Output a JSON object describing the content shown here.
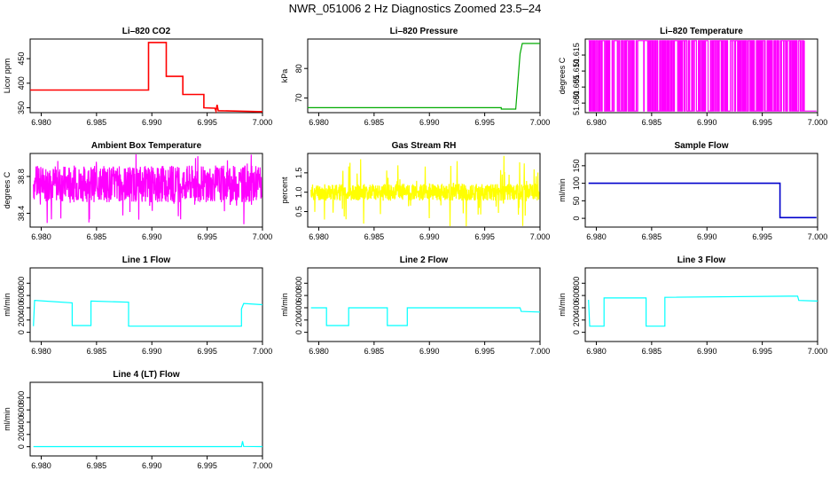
{
  "figure": {
    "title": "NWR_051006  2 Hz Diagnostics Zoomed 23.5–24"
  },
  "chart_data": [
    {
      "type": "line",
      "id": "co2",
      "title": "Li–820 CO2",
      "ylabel": "Licor ppm",
      "color": "#ff0000",
      "xlim": [
        6.979,
        7.0
      ],
      "ylim": [
        340,
        490
      ],
      "xticks": [
        6.98,
        6.985,
        6.99,
        6.995,
        7.0
      ],
      "xtick_labels": [
        "6.980",
        "6.985",
        "6.990",
        "6.995",
        "7.000"
      ],
      "yticks": [
        350,
        400,
        450
      ],
      "ytick_labels": [
        "350",
        "400",
        "450"
      ],
      "x": [
        6.979,
        6.9897,
        6.9897,
        6.9913,
        6.9913,
        6.9928,
        6.9928,
        6.9947,
        6.9947,
        6.9957,
        6.9958,
        6.9959,
        6.996,
        7.0
      ],
      "y": [
        386,
        386,
        483,
        483,
        414,
        414,
        377,
        377,
        350,
        349,
        343,
        356,
        344,
        342
      ]
    },
    {
      "type": "line",
      "id": "pressure",
      "title": "Li–820 Pressure",
      "ylabel": "kPa",
      "color": "#00aa00",
      "xlim": [
        6.979,
        7.0
      ],
      "ylim": [
        65,
        90
      ],
      "xticks": [
        6.98,
        6.985,
        6.99,
        6.995,
        7.0
      ],
      "xtick_labels": [
        "6.980",
        "6.985",
        "6.990",
        "6.995",
        "7.000"
      ],
      "yticks": [
        70,
        80
      ],
      "ytick_labels": [
        "70",
        "80"
      ],
      "x": [
        6.979,
        6.9965,
        6.9965,
        6.9978,
        6.9982,
        6.9984,
        7.0
      ],
      "y": [
        66.7,
        66.7,
        66.2,
        66.2,
        85,
        88.5,
        88.5
      ]
    },
    {
      "type": "line",
      "id": "licor-temp",
      "title": "Li–820 Temperature",
      "ylabel": "degrees C",
      "color": "#ff00ff",
      "xlim": [
        6.979,
        7.0
      ],
      "ylim": [
        51.597,
        51.62
      ],
      "xticks": [
        6.98,
        6.985,
        6.99,
        6.995,
        7.0
      ],
      "xtick_labels": [
        "6.980",
        "6.985",
        "6.990",
        "6.995",
        "7.000"
      ],
      "yticks": [
        51.6,
        51.605,
        51.61,
        51.615
      ],
      "ytick_labels": [
        "51.600",
        "51.605",
        "51.610",
        "51.615"
      ],
      "series_style": "binary",
      "low": 51.5975,
      "high": 51.6195,
      "seed": 3,
      "density": 0.55,
      "steps": 90,
      "x_end": 6.9988
    },
    {
      "type": "line",
      "id": "box-temp",
      "title": "Ambient Box Temperature",
      "ylabel": "degrees C",
      "color": "#ff00ff",
      "xlim": [
        6.979,
        7.0
      ],
      "ylim": [
        38.25,
        39.05
      ],
      "xticks": [
        6.98,
        6.985,
        6.99,
        6.995,
        7.0
      ],
      "xtick_labels": [
        "6.980",
        "6.985",
        "6.990",
        "6.995",
        "7.000"
      ],
      "yticks": [
        38.4,
        38.8
      ],
      "ytick_labels": [
        "38.4",
        "38.8"
      ],
      "series_style": "noise",
      "center": 38.72,
      "spread": 0.2,
      "spike": 0.35,
      "seed": 7,
      "steps": 900
    },
    {
      "type": "line",
      "id": "rh",
      "title": "Gas Stream RH",
      "ylabel": "percent",
      "color": "#ffff00",
      "xlim": [
        6.979,
        7.0
      ],
      "ylim": [
        0.1,
        2.0
      ],
      "xticks": [
        6.98,
        6.985,
        6.99,
        6.995,
        7.0
      ],
      "xtick_labels": [
        "6.980",
        "6.985",
        "6.990",
        "6.995",
        "7.000"
      ],
      "yticks": [
        0.5,
        1.0,
        1.5
      ],
      "ytick_labels": [
        "0.5",
        "1.0",
        "1.5"
      ],
      "series_style": "noise",
      "center": 1.0,
      "spread": 0.22,
      "spike": 0.75,
      "seed": 11,
      "steps": 900
    },
    {
      "type": "line",
      "id": "sample-flow",
      "title": "Sample Flow",
      "ylabel": "ml/min",
      "color": "#0000cc",
      "xlim": [
        6.979,
        7.0
      ],
      "ylim": [
        -25,
        185
      ],
      "xticks": [
        6.98,
        6.985,
        6.99,
        6.995,
        7.0
      ],
      "xtick_labels": [
        "6.980",
        "6.985",
        "6.990",
        "6.995",
        "7.000"
      ],
      "yticks": [
        0,
        50,
        100,
        150
      ],
      "ytick_labels": [
        "0",
        "50",
        "100",
        "150"
      ],
      "x": [
        6.9793,
        6.9966,
        6.9966,
        6.9999
      ],
      "y": [
        100,
        100,
        2,
        2
      ]
    },
    {
      "type": "line",
      "id": "line1-flow",
      "title": "Line 1 Flow",
      "ylabel": "ml/min",
      "color": "#00ffff",
      "xlim": [
        6.979,
        7.0
      ],
      "ylim": [
        -150,
        1050
      ],
      "xticks": [
        6.98,
        6.985,
        6.99,
        6.995,
        7.0
      ],
      "xtick_labels": [
        "6.980",
        "6.985",
        "6.990",
        "6.995",
        "7.000"
      ],
      "yticks": [
        0,
        200,
        400,
        600,
        800
      ],
      "ytick_labels": [
        "0",
        "200",
        "400",
        "600",
        "800"
      ],
      "x": [
        6.9793,
        6.9794,
        6.9828,
        6.9828,
        6.9845,
        6.9845,
        6.9879,
        6.9879,
        6.9981,
        6.9981,
        6.9983,
        7.0
      ],
      "y": [
        100,
        520,
        480,
        110,
        110,
        510,
        490,
        100,
        100,
        380,
        470,
        450
      ]
    },
    {
      "type": "line",
      "id": "line2-flow",
      "title": "Line 2 Flow",
      "ylabel": "ml/min",
      "color": "#00ffff",
      "xlim": [
        6.979,
        7.0
      ],
      "ylim": [
        -150,
        1050
      ],
      "xticks": [
        6.98,
        6.985,
        6.99,
        6.995,
        7.0
      ],
      "xtick_labels": [
        "6.980",
        "6.985",
        "6.990",
        "6.995",
        "7.000"
      ],
      "yticks": [
        0,
        200,
        400,
        600,
        800
      ],
      "ytick_labels": [
        "0",
        "200",
        "400",
        "600",
        "800"
      ],
      "x": [
        6.9793,
        6.9807,
        6.9807,
        6.9827,
        6.9827,
        6.9862,
        6.9862,
        6.988,
        6.988,
        6.9982,
        6.9983,
        7.0
      ],
      "y": [
        400,
        400,
        110,
        110,
        400,
        400,
        110,
        110,
        400,
        400,
        340,
        330
      ]
    },
    {
      "type": "line",
      "id": "line3-flow",
      "title": "Line 3 Flow",
      "ylabel": "ml/min",
      "color": "#00ffff",
      "xlim": [
        6.979,
        7.0
      ],
      "ylim": [
        -150,
        1050
      ],
      "xticks": [
        6.98,
        6.985,
        6.99,
        6.995,
        7.0
      ],
      "xtick_labels": [
        "6.980",
        "6.985",
        "6.990",
        "6.995",
        "7.000"
      ],
      "yticks": [
        0,
        200,
        400,
        600,
        800
      ],
      "ytick_labels": [
        "0",
        "200",
        "400",
        "600",
        "800"
      ],
      "x": [
        6.9793,
        6.9794,
        6.9807,
        6.9807,
        6.9845,
        6.9845,
        6.9862,
        6.9862,
        6.9982,
        6.9983,
        7.0
      ],
      "y": [
        530,
        100,
        100,
        560,
        560,
        100,
        100,
        570,
        590,
        520,
        510
      ]
    },
    {
      "type": "line",
      "id": "line4-flow",
      "title": "Line 4 (LT) Flow",
      "ylabel": "ml/min",
      "color": "#00ffff",
      "xlim": [
        6.979,
        7.0
      ],
      "ylim": [
        -150,
        1050
      ],
      "xticks": [
        6.98,
        6.985,
        6.99,
        6.995,
        7.0
      ],
      "xtick_labels": [
        "6.980",
        "6.985",
        "6.990",
        "6.995",
        "7.000"
      ],
      "yticks": [
        0,
        200,
        400,
        600,
        800
      ],
      "ytick_labels": [
        "0",
        "200",
        "400",
        "600",
        "800"
      ],
      "x": [
        6.9793,
        6.9981,
        6.9982,
        6.9983,
        7.0
      ],
      "y": [
        2,
        2,
        90,
        5,
        2
      ]
    }
  ]
}
